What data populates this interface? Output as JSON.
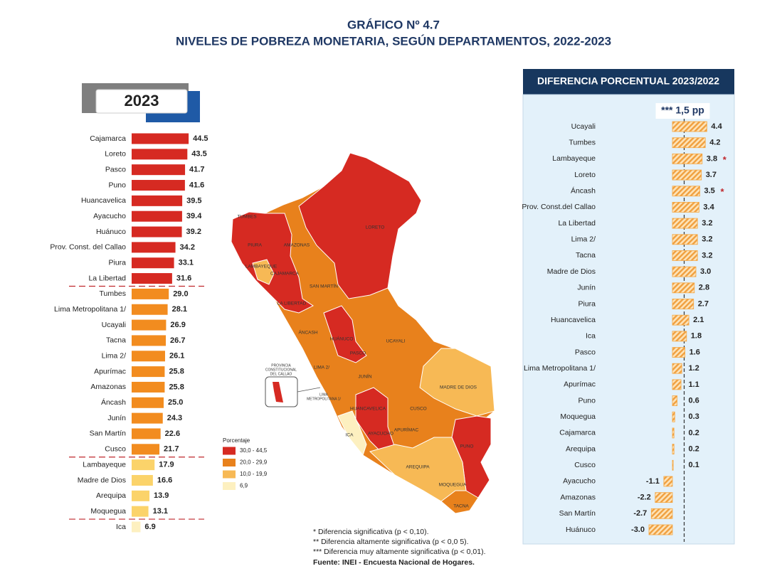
{
  "header": {
    "title": "GRÁFICO Nº 4.7",
    "subtitle": "NIVELES DE POBREZA MONETARIA, SEGÚN DEPARTAMENTOS, 2022-2023"
  },
  "chart_data": [
    {
      "type": "bar",
      "orientation": "horizontal",
      "title": "2023",
      "categories": [
        "Cajamarca",
        "Loreto",
        "Pasco",
        "Puno",
        "Huancavelica",
        "Ayacucho",
        "Huánuco",
        "Prov. Const. del Callao",
        "Piura",
        "La Libertad",
        "Tumbes",
        "Lima Metropolitana 1/",
        "Ucayali",
        "Tacna",
        "Lima 2/",
        "Apurímac",
        "Amazonas",
        "Áncash",
        "Junín",
        "San Martín",
        "Cusco",
        "Lambayeque",
        "Madre de Dios",
        "Arequipa",
        "Moquegua",
        "Ica"
      ],
      "values": [
        44.5,
        43.5,
        41.7,
        41.6,
        39.5,
        39.4,
        39.2,
        34.2,
        33.1,
        31.6,
        29.0,
        28.1,
        26.9,
        26.7,
        26.1,
        25.8,
        25.8,
        25.0,
        24.3,
        22.6,
        21.7,
        17.9,
        16.6,
        13.9,
        13.1,
        6.9
      ],
      "value_labels": [
        "44.5",
        "43.5",
        "41.7",
        "41.6",
        "39.5",
        "39.4",
        "39.2",
        "34.2",
        "33.1",
        "31.6",
        "29.0",
        "28.1",
        "26.9",
        "26.7",
        "26.1",
        "25.8",
        "25.8",
        "25.0",
        "24.3",
        "22.6",
        "21.7",
        "17.9",
        "16.6",
        "13.9",
        "13.1",
        "6.9"
      ],
      "colors": [
        "#d62a22",
        "#d62a22",
        "#d62a22",
        "#d62a22",
        "#d62a22",
        "#d62a22",
        "#d62a22",
        "#d62a22",
        "#d62a22",
        "#d62a22",
        "#f28c1f",
        "#f28c1f",
        "#f28c1f",
        "#f28c1f",
        "#f28c1f",
        "#f28c1f",
        "#f28c1f",
        "#f28c1f",
        "#f28c1f",
        "#f28c1f",
        "#f28c1f",
        "#fbd36a",
        "#fbd36a",
        "#fbd36a",
        "#fbd36a",
        "#fdf0c0"
      ]
    },
    {
      "type": "bar",
      "orientation": "horizontal",
      "title": "DIFERENCIA PORCENTUAL 2023/2022",
      "categories": [
        "Ucayali",
        "Tumbes",
        "Lambayeque",
        "Loreto",
        "Áncash",
        "Prov. Const.del Callao",
        "La Libertad",
        "Lima 2/",
        "Tacna",
        "Madre de Dios",
        "Junín",
        "Piura",
        "Huancavelica",
        "Ica",
        "Pasco",
        "Lima Metropolitana 1/",
        "Apurímac",
        "Puno",
        "Moquegua",
        "Cajamarca",
        "Arequipa",
        "Cusco",
        "Ayacucho",
        "Amazonas",
        "San Martín",
        "Huánuco"
      ],
      "values": [
        4.4,
        4.2,
        3.8,
        3.7,
        3.5,
        3.4,
        3.2,
        3.2,
        3.2,
        3.0,
        2.8,
        2.7,
        2.1,
        1.8,
        1.6,
        1.2,
        1.1,
        0.6,
        0.3,
        0.2,
        0.2,
        0.1,
        -1.1,
        -2.2,
        -2.7,
        -3.0
      ],
      "value_labels": [
        "4.4",
        "4.2",
        "3.8",
        "3.7",
        "3.5",
        "3.4",
        "3.2",
        "3.2",
        "3.2",
        "3.0",
        "2.8",
        "2.7",
        "2.1",
        "1.8",
        "1.6",
        "1.2",
        "1.1",
        "0.6",
        "0.3",
        "0.2",
        "0.2",
        "0.1",
        "-1.1",
        "-2.2",
        "-2.7",
        "-3.0"
      ],
      "markers": [
        null,
        null,
        "*",
        null,
        "*",
        null,
        null,
        null,
        null,
        null,
        null,
        null,
        null,
        null,
        null,
        null,
        null,
        null,
        null,
        null,
        null,
        null,
        null,
        null,
        null,
        null
      ],
      "color": "#f5a742",
      "hatch": true,
      "reference_line": {
        "value": 1.5,
        "label": "*** 1,5 pp"
      }
    }
  ],
  "map": {
    "legend_title": "Porcentaje",
    "legend": [
      {
        "label": "30,0 - 44,5",
        "color": "#d62a22"
      },
      {
        "label": "20,0 - 29,9",
        "color": "#e8811c"
      },
      {
        "label": "10,0 - 19,9",
        "color": "#f7b955"
      },
      {
        "label": "6,9",
        "color": "#fdf0c0"
      }
    ],
    "labels": [
      "TUMBES",
      "PIURA",
      "AMAZONAS",
      "LORETO",
      "LAMBAYEQUE",
      "CAJAMARCA",
      "SAN MARTÍN",
      "LA LIBERTAD",
      "ÁNCASH",
      "HUÁNUCO",
      "UCAYALI",
      "PASCO",
      "LIMA 2/",
      "JUNÍN",
      "MADRE DE DIOS",
      "HUANCAVELICA",
      "CUSCO",
      "ICA",
      "AYACUCHO",
      "APURÍMAC",
      "PUNO",
      "AREQUIPA",
      "MOQUEGUA",
      "TACNA"
    ],
    "inset_labels": [
      [
        "PROVINCIA",
        "CONSTITUCIONAL",
        "DEL CALLAO"
      ],
      [
        "LIMA",
        "METROPOLITANA 1/"
      ]
    ]
  },
  "footnotes": [
    "* Diferencia significativa (p <  0,10).",
    "** Diferencia altamente significativa (p < 0,0 5).",
    "*** Diferencia muy altamente significativa (p < 0,01)."
  ],
  "source": "Fuente: INEI - Encuesta Nacional de Hogares."
}
